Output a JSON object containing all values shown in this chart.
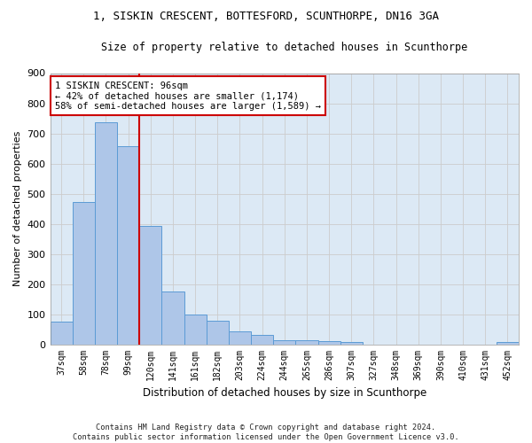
{
  "title": "1, SISKIN CRESCENT, BOTTESFORD, SCUNTHORPE, DN16 3GA",
  "subtitle": "Size of property relative to detached houses in Scunthorpe",
  "xlabel": "Distribution of detached houses by size in Scunthorpe",
  "ylabel": "Number of detached properties",
  "bar_color": "#aec6e8",
  "bar_edge_color": "#5b9bd5",
  "background_color": "#ffffff",
  "grid_color": "#cccccc",
  "categories": [
    "37sqm",
    "58sqm",
    "78sqm",
    "99sqm",
    "120sqm",
    "141sqm",
    "161sqm",
    "182sqm",
    "203sqm",
    "224sqm",
    "244sqm",
    "265sqm",
    "286sqm",
    "307sqm",
    "327sqm",
    "348sqm",
    "369sqm",
    "390sqm",
    "410sqm",
    "431sqm",
    "452sqm"
  ],
  "values": [
    75,
    473,
    738,
    658,
    393,
    175,
    100,
    78,
    43,
    30,
    13,
    13,
    10,
    7,
    0,
    0,
    0,
    0,
    0,
    0,
    8
  ],
  "vline_x": 3.5,
  "vline_color": "#cc0000",
  "annotation_text": "1 SISKIN CRESCENT: 96sqm\n← 42% of detached houses are smaller (1,174)\n58% of semi-detached houses are larger (1,589) →",
  "annotation_box_color": "#cc0000",
  "footer": "Contains HM Land Registry data © Crown copyright and database right 2024.\nContains public sector information licensed under the Open Government Licence v3.0.",
  "ylim": [
    0,
    900
  ],
  "yticks": [
    0,
    100,
    200,
    300,
    400,
    500,
    600,
    700,
    800,
    900
  ],
  "ax_facecolor": "#dce9f5"
}
